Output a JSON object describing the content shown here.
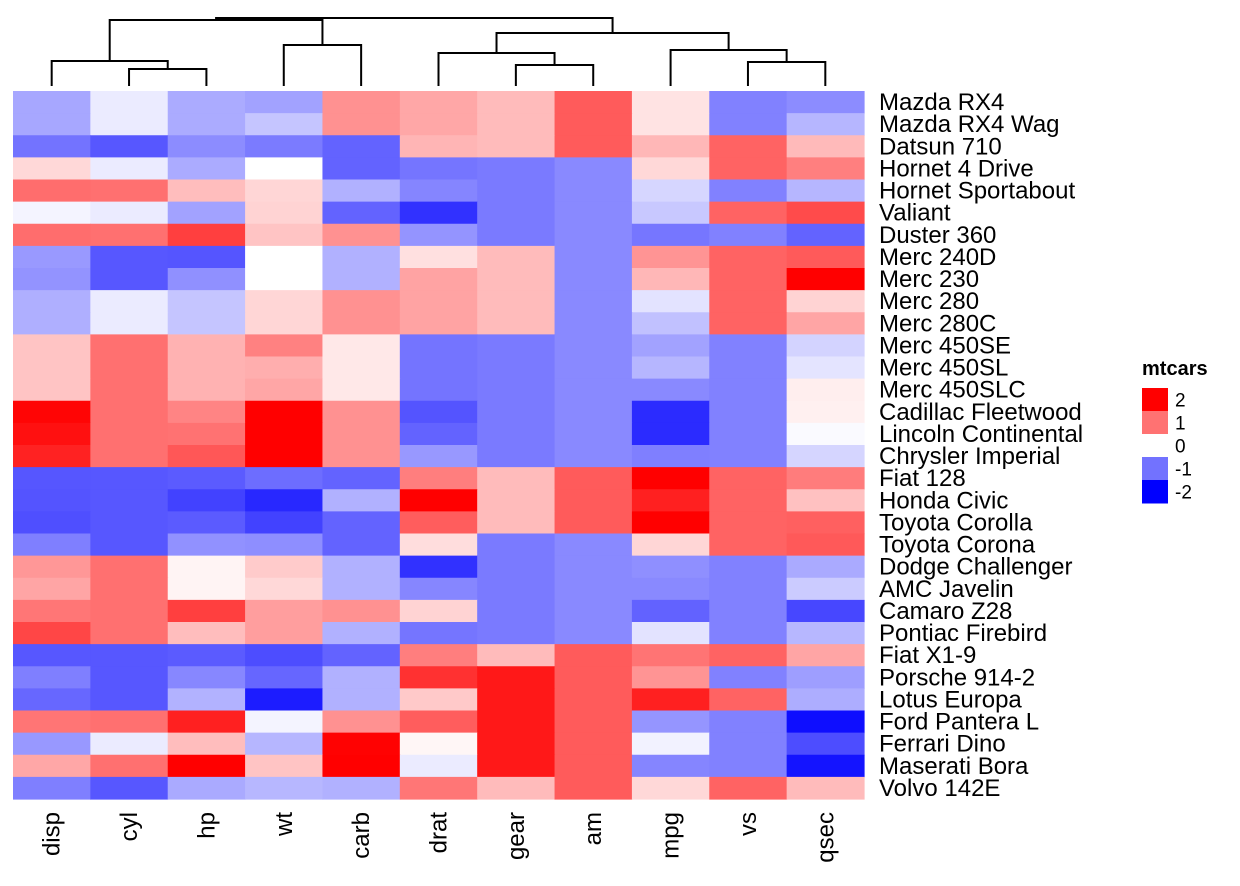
{
  "chart_data": {
    "type": "heatmap",
    "title": "",
    "xlabel": "",
    "ylabel": "",
    "columns": [
      "disp",
      "cyl",
      "hp",
      "wt",
      "carb",
      "drat",
      "gear",
      "am",
      "mpg",
      "vs",
      "qsec"
    ],
    "rows": [
      "Mazda RX4",
      "Mazda RX4 Wag",
      "Datsun 710",
      "Hornet 4 Drive",
      "Hornet Sportabout",
      "Valiant",
      "Duster 360",
      "Merc 240D",
      "Merc 230",
      "Merc 280",
      "Merc 280C",
      "Merc 450SE",
      "Merc 450SL",
      "Merc 450SLC",
      "Cadillac Fleetwood",
      "Lincoln Continental",
      "Chrysler Imperial",
      "Fiat 128",
      "Honda Civic",
      "Toyota Corolla",
      "Toyota Corona",
      "Dodge Challenger",
      "AMC Javelin",
      "Camaro Z28",
      "Pontiac Firebird",
      "Fiat X1-9",
      "Porsche 914-2",
      "Lotus Europa",
      "Ford Pantera L",
      "Ferrari Dino",
      "Maserati Bora",
      "Volvo 142E"
    ],
    "values": [
      [
        -0.57,
        -0.1,
        -0.54,
        -0.61,
        0.74,
        0.57,
        0.42,
        1.19,
        0.15,
        -0.87,
        -0.78
      ],
      [
        -0.57,
        -0.1,
        -0.54,
        -0.35,
        0.74,
        0.57,
        0.42,
        1.19,
        0.15,
        -0.87,
        -0.46
      ],
      [
        -0.99,
        -1.22,
        -0.78,
        -0.92,
        -1.12,
        0.47,
        0.42,
        1.19,
        0.45,
        1.12,
        0.43
      ],
      [
        0.22,
        -0.1,
        -0.54,
        0.0,
        -1.12,
        -0.97,
        -0.93,
        -0.81,
        0.22,
        1.12,
        0.89
      ],
      [
        1.04,
        1.01,
        0.41,
        0.23,
        -0.5,
        -0.84,
        -0.93,
        -0.81,
        -0.23,
        -0.87,
        -0.46
      ],
      [
        -0.05,
        -0.1,
        -0.61,
        0.25,
        -1.12,
        -1.56,
        -0.93,
        -0.81,
        -0.33,
        1.12,
        1.33
      ],
      [
        1.04,
        1.01,
        1.43,
        0.36,
        0.74,
        -0.72,
        -0.93,
        -0.81,
        -0.96,
        -0.87,
        -1.12
      ],
      [
        -0.68,
        -1.22,
        -1.24,
        0.0,
        -0.5,
        0.17,
        0.42,
        -0.81,
        0.72,
        1.12,
        1.2
      ],
      [
        -0.73,
        -1.22,
        -0.75,
        0.0,
        -0.5,
        0.6,
        0.42,
        -0.81,
        0.45,
        1.12,
        2.83
      ],
      [
        -0.51,
        -0.1,
        -0.35,
        0.23,
        0.74,
        0.6,
        0.42,
        -0.81,
        -0.15,
        1.12,
        0.25
      ],
      [
        -0.51,
        -0.1,
        -0.35,
        0.23,
        0.74,
        0.6,
        0.42,
        -0.81,
        -0.38,
        1.12,
        0.59
      ],
      [
        0.36,
        1.01,
        0.49,
        0.87,
        0.12,
        -0.98,
        -0.93,
        -0.81,
        -0.61,
        -0.87,
        -0.25
      ],
      [
        0.36,
        1.01,
        0.49,
        0.52,
        0.12,
        -0.98,
        -0.93,
        -0.81,
        -0.46,
        -0.87,
        -0.14
      ],
      [
        0.36,
        1.01,
        0.49,
        0.58,
        0.12,
        -0.98,
        -0.93,
        -0.81,
        -0.81,
        -0.87,
        0.08
      ],
      [
        1.95,
        1.01,
        0.85,
        2.08,
        0.74,
        -1.25,
        -0.93,
        -0.81,
        -1.61,
        -0.87,
        0.07
      ],
      [
        1.85,
        1.01,
        1.0,
        2.26,
        0.74,
        -1.12,
        -0.93,
        -0.81,
        -1.61,
        -0.87,
        -0.02
      ],
      [
        1.69,
        1.01,
        1.22,
        2.17,
        0.74,
        -0.69,
        -0.93,
        -0.81,
        -0.89,
        -0.87,
        -0.24
      ],
      [
        -1.23,
        -1.22,
        -1.19,
        -1.04,
        -1.12,
        0.9,
        0.42,
        1.19,
        2.04,
        1.12,
        0.91
      ],
      [
        -1.25,
        -1.22,
        -1.41,
        -1.64,
        -0.5,
        2.49,
        0.42,
        1.19,
        1.71,
        1.12,
        0.38
      ],
      [
        -1.29,
        -1.22,
        -1.19,
        -1.41,
        -1.12,
        1.17,
        0.42,
        1.19,
        2.29,
        1.12,
        1.15
      ],
      [
        -0.89,
        -1.22,
        -0.74,
        -0.77,
        -1.12,
        0.19,
        -0.93,
        -0.81,
        0.23,
        1.12,
        1.21
      ],
      [
        0.7,
        1.01,
        0.05,
        0.31,
        -0.5,
        -1.56,
        -0.93,
        -0.81,
        -0.76,
        -0.87,
        -0.55
      ],
      [
        0.59,
        1.01,
        0.05,
        0.22,
        -0.5,
        -0.83,
        -0.93,
        -0.81,
        -0.81,
        -0.87,
        -0.31
      ],
      [
        0.96,
        1.01,
        1.43,
        0.64,
        0.74,
        0.25,
        -0.93,
        -0.81,
        -1.13,
        -0.87,
        -1.36
      ],
      [
        1.37,
        1.01,
        0.41,
        0.64,
        -0.5,
        -0.97,
        -0.93,
        -0.81,
        -0.15,
        -0.87,
        -0.45
      ],
      [
        -1.22,
        -1.22,
        -1.19,
        -1.31,
        -1.12,
        0.9,
        0.42,
        1.19,
        0.98,
        1.12,
        0.59
      ],
      [
        -0.89,
        -1.22,
        -0.82,
        -1.1,
        -0.5,
        1.56,
        1.78,
        1.19,
        0.72,
        -0.87,
        -0.64
      ],
      [
        -1.09,
        -1.22,
        -0.49,
        -1.74,
        -0.5,
        0.32,
        1.78,
        1.19,
        1.71,
        1.12,
        -0.53
      ],
      [
        0.97,
        1.01,
        1.71,
        -0.05,
        0.74,
        1.17,
        1.78,
        1.19,
        -0.71,
        -0.87,
        -1.87
      ],
      [
        -0.69,
        -0.1,
        0.41,
        -0.46,
        1.98,
        0.04,
        1.78,
        1.19,
        -0.06,
        -0.87,
        -1.31
      ],
      [
        0.57,
        1.01,
        2.75,
        0.36,
        3.21,
        -0.1,
        1.78,
        1.19,
        -0.84,
        -0.87,
        -1.82
      ],
      [
        -0.89,
        -1.22,
        -0.55,
        -0.45,
        -0.5,
        0.96,
        0.42,
        1.19,
        0.22,
        1.12,
        0.42
      ]
    ],
    "legend": {
      "title": "mtcars",
      "ticks": [
        2,
        1,
        0,
        -1,
        -2
      ],
      "placement": "right"
    },
    "color_scale": {
      "low": "#0000ff",
      "mid": "#ffffff",
      "high": "#ff0000",
      "range": [
        -2,
        2
      ]
    },
    "column_dendrogram": true
  }
}
